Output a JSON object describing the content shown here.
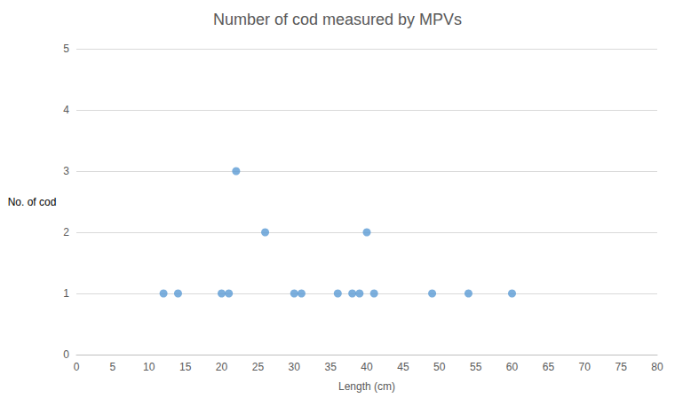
{
  "chart_data": {
    "type": "scatter",
    "title": "Number of cod measured by MPVs",
    "x_label": "Length (cm)",
    "y_label": "No. of cod",
    "x": [
      12,
      14,
      20,
      21,
      22,
      26,
      30,
      31,
      36,
      38,
      39,
      40,
      41,
      49,
      54,
      60
    ],
    "values": [
      1,
      1,
      1,
      1,
      3,
      2,
      1,
      1,
      1,
      1,
      1,
      2,
      1,
      1,
      1,
      1
    ],
    "color": "#5b9bd5",
    "marker": "circle",
    "xlim": [
      0,
      80
    ],
    "xticks": [
      0,
      5,
      10,
      15,
      20,
      25,
      30,
      35,
      40,
      45,
      50,
      55,
      60,
      65,
      70,
      75,
      80
    ],
    "ylim": [
      0,
      5
    ],
    "yticks": [
      0,
      1,
      2,
      3,
      4,
      5
    ],
    "grid": true
  }
}
